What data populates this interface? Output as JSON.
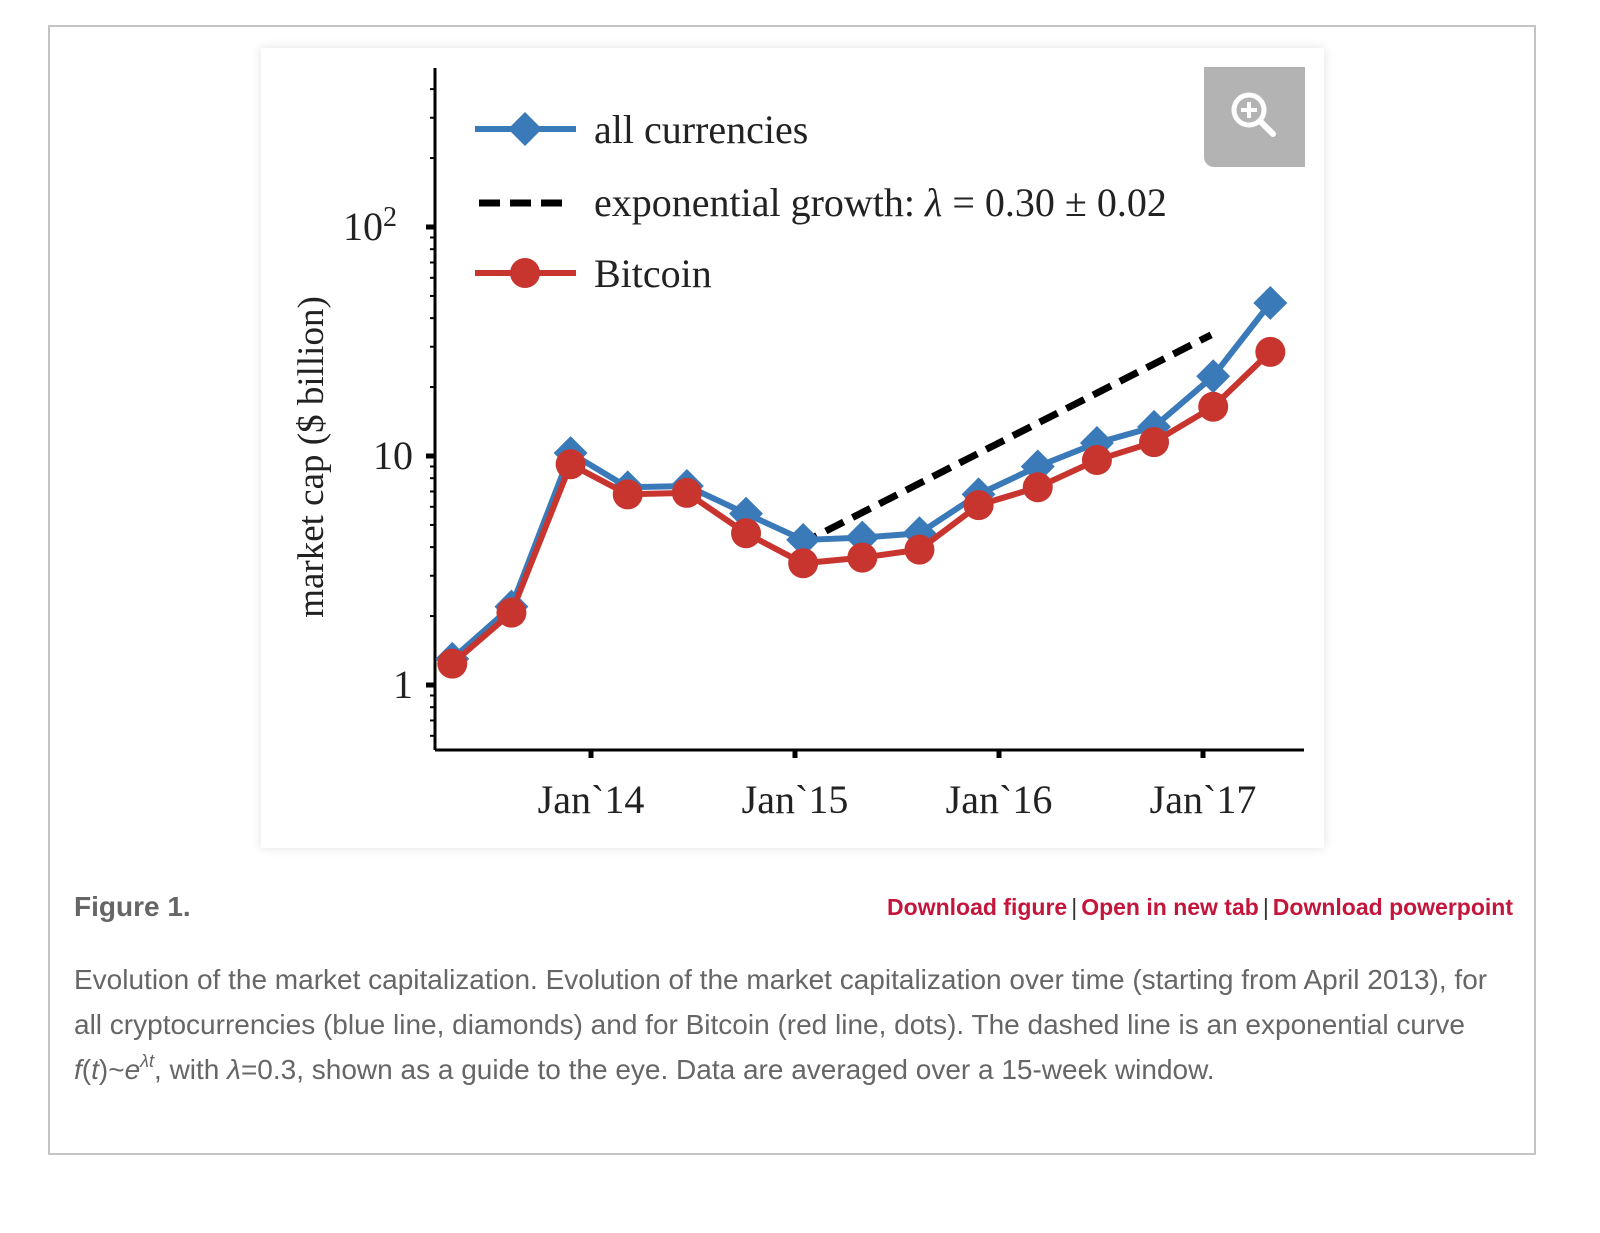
{
  "figure": {
    "label": "Figure 1.",
    "links": {
      "download_figure": "Download figure",
      "open_new_tab": "Open in new tab",
      "download_powerpoint": "Download powerpoint",
      "separator": "|"
    },
    "caption": {
      "part1": "Evolution of the market capitalization. Evolution of the market capitalization over time (starting from April 2013), for all cryptocurrencies (blue line, diamonds) and for Bitcoin (red line, dots). The dashed line is an exponential curve ",
      "formula_f": "f",
      "formula_open": "(",
      "formula_t": "t",
      "formula_close": ")~",
      "formula_e": "e",
      "formula_exp": "λt",
      "part2": ", with ",
      "lambda_sym": "λ",
      "part3": "=0.3, shown as a guide to the eye. Data are averaged over a 15-week window."
    },
    "zoom_icon": "zoom-in-magnifier-icon"
  },
  "colors": {
    "all_currencies": "#3a7ab8",
    "bitcoin": "#c8352f",
    "exponential": "#000000",
    "link": "#c4163c"
  },
  "chart_data": {
    "type": "line",
    "title": "",
    "xlabel": "",
    "ylabel": "market cap ($ billion)",
    "y_scale": "log",
    "ylim": [
      0.55,
      500
    ],
    "xlim": [
      2013.2,
      2017.5
    ],
    "y_ticks": [
      {
        "value": 1,
        "label": "1"
      },
      {
        "value": 10,
        "label": "10"
      },
      {
        "value": 100,
        "label": "10",
        "sup": "2"
      }
    ],
    "x_ticks": [
      {
        "value": 2014.0,
        "label": "Jan`14"
      },
      {
        "value": 2015.0,
        "label": "Jan`15"
      },
      {
        "value": 2016.0,
        "label": "Jan`16"
      },
      {
        "value": 2017.0,
        "label": "Jan`17"
      }
    ],
    "x": [
      2013.32,
      2013.61,
      2013.9,
      2014.18,
      2014.47,
      2014.76,
      2015.04,
      2015.33,
      2015.61,
      2015.9,
      2016.19,
      2016.48,
      2016.76,
      2017.05,
      2017.33
    ],
    "series": [
      {
        "name": "all currencies",
        "marker": "diamond",
        "values": [
          1.3,
          2.2,
          10.3,
          7.3,
          7.4,
          5.6,
          4.3,
          4.4,
          4.6,
          6.8,
          9.0,
          11.4,
          13.4,
          22.3,
          46.6
        ]
      },
      {
        "name": "Bitcoin",
        "marker": "circle",
        "values": [
          1.24,
          2.07,
          9.2,
          6.8,
          6.9,
          4.6,
          3.4,
          3.6,
          3.9,
          6.1,
          7.3,
          9.6,
          11.5,
          16.4,
          28.5
        ]
      }
    ],
    "fit_line": {
      "name": "exponential growth: λ = 0.30 ± 0.02",
      "legend_prefix": "exponential growth: ",
      "legend_lambda": "λ",
      "legend_eq": " = 0.30 ± 0.02",
      "style": "dashed",
      "lambda": 0.3,
      "x_start": 2015.02,
      "x_end": 2017.04,
      "y_start": 4.1,
      "y_end": 33.8
    },
    "legend": {
      "placement": "top-left",
      "entries": [
        "all currencies",
        "exponential growth: λ = 0.30 ± 0.02",
        "Bitcoin"
      ]
    },
    "grid": false
  }
}
